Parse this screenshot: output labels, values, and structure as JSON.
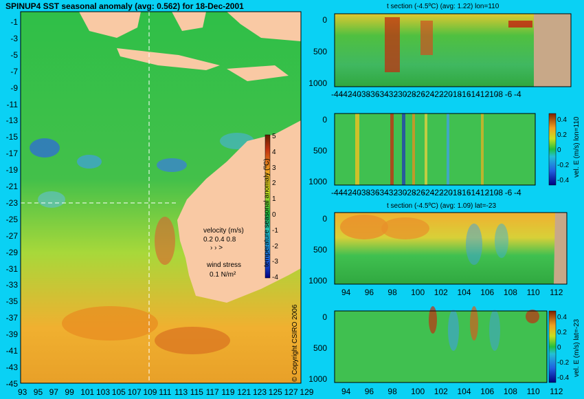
{
  "chart_data": [
    {
      "type": "heatmap",
      "title": "SPINUP4 SST seasonal anomaly (avg: 0.562) for 18-Dec-2001",
      "x_ticks": [
        "93",
        "95",
        "97",
        "99",
        "101",
        "103",
        "105",
        "107",
        "109",
        "111",
        "113",
        "115",
        "117",
        "119",
        "121",
        "123",
        "125",
        "127",
        "129"
      ],
      "y_ticks": [
        "-1",
        "-3",
        "-5",
        "-7",
        "-9",
        "-11",
        "-13",
        "-15",
        "-17",
        "-19",
        "-21",
        "-23",
        "-25",
        "-27",
        "-29",
        "-31",
        "-33",
        "-35",
        "-37",
        "-39",
        "-41",
        "-43",
        "-45"
      ],
      "colorbar": {
        "label": "temperature seasonal anomaly (ºC)",
        "ticks": [
          "5",
          "4",
          "3",
          "2",
          "1",
          "0",
          "-1",
          "-2",
          "-3",
          "-4"
        ],
        "range": [
          -4,
          5
        ]
      },
      "section_lines": {
        "lon": 110,
        "lat": -23
      },
      "annotations": {
        "velocity_label": "velocity (m/s)",
        "velocity_values": "0.2 0.4 0.8",
        "velocity_arrows": "›   ›  >",
        "wind_label": "wind stress",
        "wind_value": "0.1 N/m²"
      },
      "copyright": "© Copyright CSIRO 2006",
      "colors": {
        "land": "#f9c9a4",
        "ocean_mid": "#2eb84a",
        "warm": "#f0a020",
        "cold": "#2f6fd0",
        "section_line": "#ffffff"
      }
    },
    {
      "type": "heatmap",
      "title": "t section (-4.5ºC) (avg: 1.22) lon=110",
      "x_ticks": [
        "-44",
        "-42",
        "-40",
        "-38",
        "-36",
        "-34",
        "-32",
        "-30",
        "-28",
        "-26",
        "-24",
        "-22",
        "-20",
        "-18",
        "-16",
        "-14",
        "-12",
        "-10",
        "-8",
        "-6",
        "-4"
      ],
      "y_ticks": [
        "0",
        "500",
        "1000"
      ],
      "ylim": [
        1000,
        0
      ]
    },
    {
      "type": "heatmap",
      "title": "",
      "x_ticks": [
        "-44",
        "-42",
        "-40",
        "-38",
        "-36",
        "-34",
        "-32",
        "-30",
        "-28",
        "-26",
        "-24",
        "-22",
        "-20",
        "-18",
        "-16",
        "-14",
        "-12",
        "-10",
        "-8",
        "-6",
        "-4"
      ],
      "y_ticks": [
        "0",
        "500",
        "1000"
      ],
      "colorbar": {
        "label": "vel. E (m/s) lon=110",
        "ticks": [
          "0.4",
          "0.2",
          "0",
          "-0.2",
          "-0.4"
        ],
        "range": [
          -0.4,
          0.4
        ]
      }
    },
    {
      "type": "heatmap",
      "title": "t section (-4.5ºC) (avg: 1.09) lat=-23",
      "x_ticks": [
        "94",
        "96",
        "98",
        "100",
        "102",
        "104",
        "106",
        "108",
        "110",
        "112"
      ],
      "y_ticks": [
        "0",
        "500",
        "1000"
      ]
    },
    {
      "type": "heatmap",
      "title": "",
      "x_ticks": [
        "94",
        "96",
        "98",
        "100",
        "102",
        "104",
        "106",
        "108",
        "110",
        "112"
      ],
      "y_ticks": [
        "0",
        "500",
        "1000"
      ],
      "colorbar": {
        "label": "vel. E (m/s) lat=-23",
        "ticks": [
          "0.4",
          "0.2",
          "0",
          "-0.2",
          "-0.4"
        ],
        "range": [
          -0.4,
          0.4
        ]
      }
    }
  ]
}
